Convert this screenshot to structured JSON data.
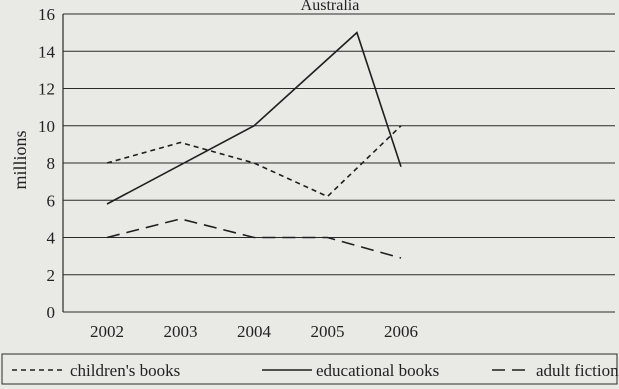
{
  "chart_data": {
    "type": "line",
    "title": "Australia",
    "xlabel": "",
    "ylabel": "millions",
    "categories": [
      "2002",
      "2003",
      "2004",
      "2005",
      "2006"
    ],
    "x": [
      2002,
      2003,
      2004,
      2005,
      2005.4,
      2006
    ],
    "ylim": [
      0,
      16
    ],
    "yticks": [
      0,
      2,
      4,
      6,
      8,
      10,
      12,
      14,
      16
    ],
    "grid": true,
    "legend_position": "bottom",
    "series": [
      {
        "name": "children's books",
        "dash": "short-dash",
        "points": [
          [
            2002,
            8
          ],
          [
            2003,
            9.1
          ],
          [
            2004,
            8
          ],
          [
            2005,
            6.2
          ],
          [
            2006,
            10
          ]
        ]
      },
      {
        "name": "educational books",
        "dash": "solid",
        "points": [
          [
            2002,
            5.8
          ],
          [
            2004,
            10
          ],
          [
            2005.4,
            15
          ],
          [
            2006,
            7.8
          ]
        ]
      },
      {
        "name": "adult fiction",
        "dash": "long-dash",
        "points": [
          [
            2002,
            4
          ],
          [
            2003,
            5
          ],
          [
            2004,
            4
          ],
          [
            2005,
            4
          ],
          [
            2006,
            2.9
          ]
        ]
      }
    ],
    "colors": {
      "background": "#e9e9e6",
      "grid": "#2a2a2a",
      "lines": "#1f1f1f"
    }
  }
}
